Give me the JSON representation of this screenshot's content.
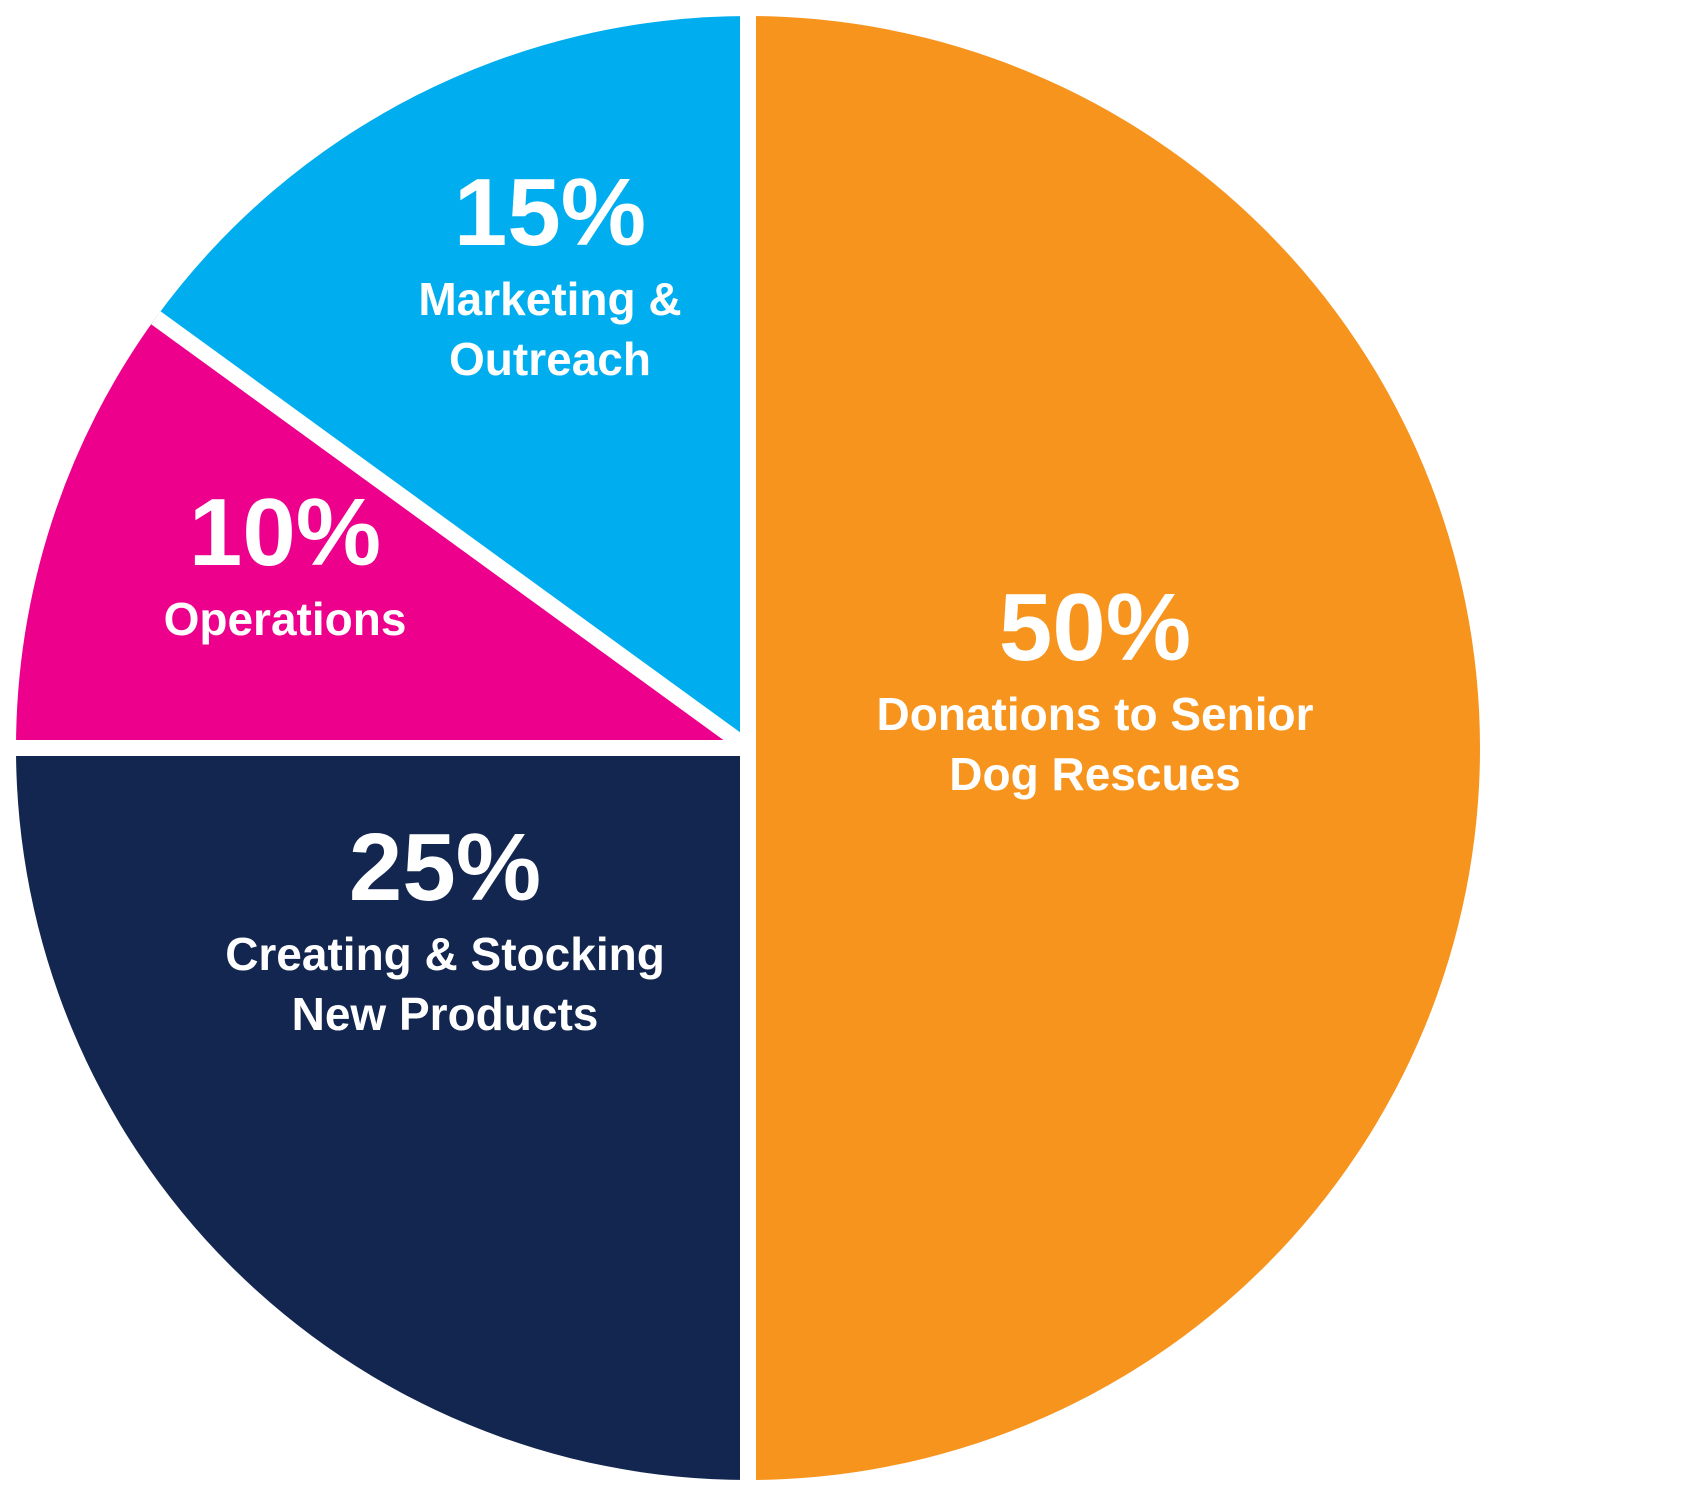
{
  "chart_data": {
    "type": "pie",
    "title": "",
    "slices": [
      {
        "percent_label": "50%",
        "label_lines": [
          "Donations to Senior",
          "Dog Rescues"
        ],
        "value": 50,
        "color": "#F7941D"
      },
      {
        "percent_label": "25%",
        "label_lines": [
          "Creating & Stocking",
          "New Products"
        ],
        "value": 25,
        "color": "#12264F"
      },
      {
        "percent_label": "10%",
        "label_lines": [
          "Operations"
        ],
        "value": 10,
        "color": "#EC008C"
      },
      {
        "percent_label": "15%",
        "label_lines": [
          "Marketing &",
          "Outreach"
        ],
        "value": 15,
        "color": "#00AEEF"
      }
    ],
    "separator_color": "#ffffff",
    "legend": "none"
  }
}
